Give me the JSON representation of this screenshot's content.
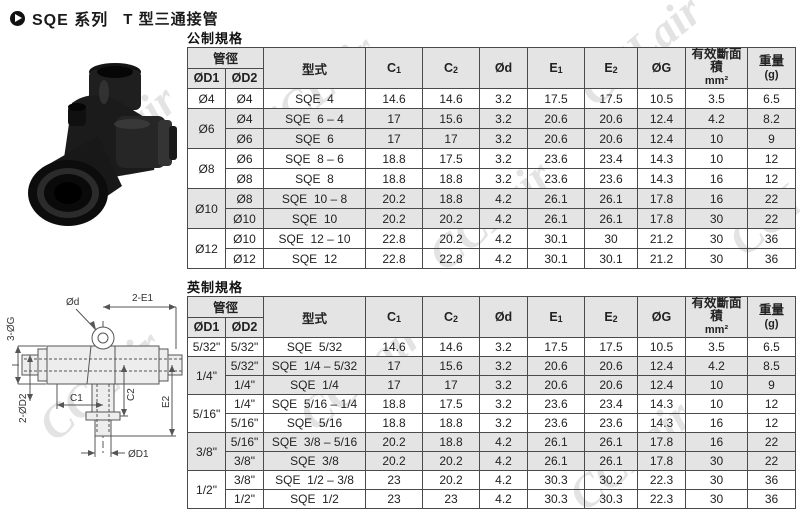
{
  "title": {
    "series": "SQE 系列",
    "name": "T 型三通接管"
  },
  "watermark": {
    "text": "CCLair"
  },
  "columns": {
    "pipe_dia": "管徑",
    "d1": "ØD1",
    "d2": "ØD2",
    "model": "型式",
    "c1_main": "C",
    "c1_sub": "1",
    "c2_main": "C",
    "c2_sub": "2",
    "od": "Ød",
    "e1_main": "E",
    "e1_sub": "1",
    "e2_main": "E",
    "e2_sub": "2",
    "og": "ØG",
    "area_line1": "有效斷面積",
    "area_line2": "mm²",
    "weight_line1": "重量",
    "weight_line2": "(g)"
  },
  "metric": {
    "label": "公制規格",
    "groups": [
      {
        "d1": "Ø4",
        "shaded": false,
        "rows": [
          [
            "Ø4",
            "SQE  4",
            "14.6",
            "14.6",
            "3.2",
            "17.5",
            "17.5",
            "10.5",
            "3.5",
            "6.5"
          ]
        ]
      },
      {
        "d1": "Ø6",
        "shaded": true,
        "rows": [
          [
            "Ø4",
            "SQE  6 – 4",
            "17",
            "15.6",
            "3.2",
            "20.6",
            "20.6",
            "12.4",
            "4.2",
            "8.2"
          ],
          [
            "Ø6",
            "SQE  6",
            "17",
            "17",
            "3.2",
            "20.6",
            "20.6",
            "12.4",
            "10",
            "9"
          ]
        ]
      },
      {
        "d1": "Ø8",
        "shaded": false,
        "rows": [
          [
            "Ø6",
            "SQE  8 – 6",
            "18.8",
            "17.5",
            "3.2",
            "23.6",
            "23.4",
            "14.3",
            "10",
            "12"
          ],
          [
            "Ø8",
            "SQE  8",
            "18.8",
            "18.8",
            "3.2",
            "23.6",
            "23.6",
            "14.3",
            "16",
            "12"
          ]
        ]
      },
      {
        "d1": "Ø10",
        "shaded": true,
        "rows": [
          [
            "Ø8",
            "SQE  10 – 8",
            "20.2",
            "18.8",
            "4.2",
            "26.1",
            "26.1",
            "17.8",
            "16",
            "22"
          ],
          [
            "Ø10",
            "SQE  10",
            "20.2",
            "20.2",
            "4.2",
            "26.1",
            "26.1",
            "17.8",
            "30",
            "22"
          ]
        ]
      },
      {
        "d1": "Ø12",
        "shaded": false,
        "rows": [
          [
            "Ø10",
            "SQE  12 – 10",
            "22.8",
            "20.2",
            "4.2",
            "30.1",
            "30",
            "21.2",
            "30",
            "36"
          ],
          [
            "Ø12",
            "SQE  12",
            "22.8",
            "22.8",
            "4.2",
            "30.1",
            "30.1",
            "21.2",
            "30",
            "36"
          ]
        ]
      }
    ]
  },
  "imperial": {
    "label": "英制規格",
    "groups": [
      {
        "d1": "5/32\"",
        "shaded": false,
        "rows": [
          [
            "5/32\"",
            "SQE  5/32",
            "14.6",
            "14.6",
            "3.2",
            "17.5",
            "17.5",
            "10.5",
            "3.5",
            "6.5"
          ]
        ]
      },
      {
        "d1": "1/4\"",
        "shaded": true,
        "rows": [
          [
            "5/32\"",
            "SQE  1/4 – 5/32",
            "17",
            "15.6",
            "3.2",
            "20.6",
            "20.6",
            "12.4",
            "4.2",
            "8.5"
          ],
          [
            "1/4\"",
            "SQE  1/4",
            "17",
            "17",
            "3.2",
            "20.6",
            "20.6",
            "12.4",
            "10",
            "9"
          ]
        ]
      },
      {
        "d1": "5/16\"",
        "shaded": false,
        "rows": [
          [
            "1/4\"",
            "SQE  5/16 – 1/4",
            "18.8",
            "17.5",
            "3.2",
            "23.6",
            "23.4",
            "14.3",
            "10",
            "12"
          ],
          [
            "5/16\"",
            "SQE  5/16",
            "18.8",
            "18.8",
            "3.2",
            "23.6",
            "23.6",
            "14.3",
            "16",
            "12"
          ]
        ]
      },
      {
        "d1": "3/8\"",
        "shaded": true,
        "rows": [
          [
            "5/16\"",
            "SQE  3/8 – 5/16",
            "20.2",
            "18.8",
            "4.2",
            "26.1",
            "26.1",
            "17.8",
            "16",
            "22"
          ],
          [
            "3/8\"",
            "SQE  3/8",
            "20.2",
            "20.2",
            "4.2",
            "26.1",
            "26.1",
            "17.8",
            "30",
            "22"
          ]
        ]
      },
      {
        "d1": "1/2\"",
        "shaded": false,
        "rows": [
          [
            "3/8\"",
            "SQE  1/2 – 3/8",
            "23",
            "20.2",
            "4.2",
            "30.3",
            "30.2",
            "22.3",
            "30",
            "36"
          ],
          [
            "1/2\"",
            "SQE  1/2",
            "23",
            "23",
            "4.2",
            "30.3",
            "30.3",
            "22.3",
            "30",
            "36"
          ]
        ]
      }
    ]
  },
  "diagram": {
    "labels": {
      "hole": "Ød",
      "top_width": "2-E1",
      "left_upper": "3-ØG",
      "left_lower": "2-ØD2",
      "c1": "C1",
      "c2": "C2",
      "e2": "E2",
      "bottom": "ØD1"
    }
  }
}
